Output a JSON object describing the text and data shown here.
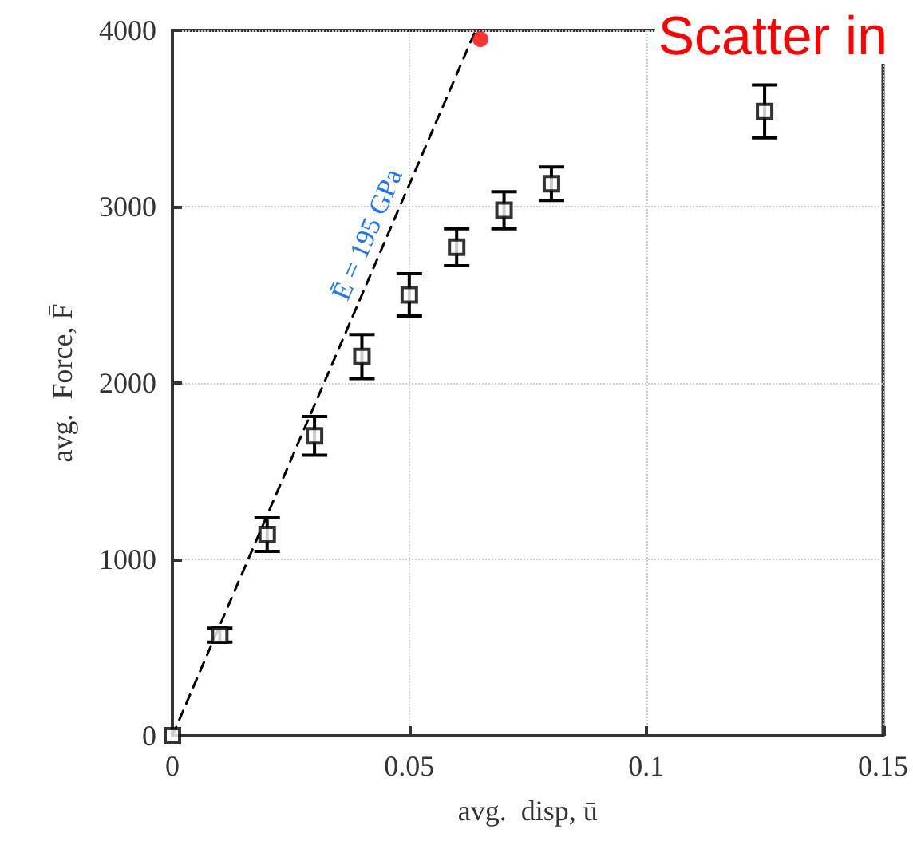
{
  "chart_data": {
    "type": "scatter",
    "xlabel": "avg.  disp, ū",
    "ylabel": "avg.  Force, F̄",
    "xlim": [
      0,
      0.15
    ],
    "ylim": [
      0,
      4000
    ],
    "xticks": [
      0,
      0.05,
      0.1,
      0.15
    ],
    "yticks": [
      0,
      1000,
      2000,
      3000,
      4000
    ],
    "grid": true,
    "marker": "square",
    "series": [
      {
        "color": "#000000",
        "x": [
          0,
          0.01,
          0.02,
          0.03,
          0.04,
          0.05,
          0.06,
          0.07,
          0.08,
          0.125
        ],
        "values": [
          0,
          570,
          1140,
          1700,
          2150,
          2500,
          2770,
          2980,
          3130,
          3540
        ],
        "errors": [
          null,
          40,
          95,
          110,
          125,
          120,
          105,
          105,
          95,
          150
        ]
      },
      {
        "type": "line",
        "color": "#000000",
        "marker": "none",
        "line_style": "dashed",
        "x": [
          0,
          0.064
        ],
        "values": [
          0,
          4000
        ]
      },
      {
        "type": "scatter",
        "color": "#ff0000",
        "marker": "circle",
        "x": [
          0.065
        ],
        "values": [
          3950
        ]
      }
    ],
    "annotations": [
      "Ē = 195 GPa",
      "Scatter in"
    ]
  }
}
